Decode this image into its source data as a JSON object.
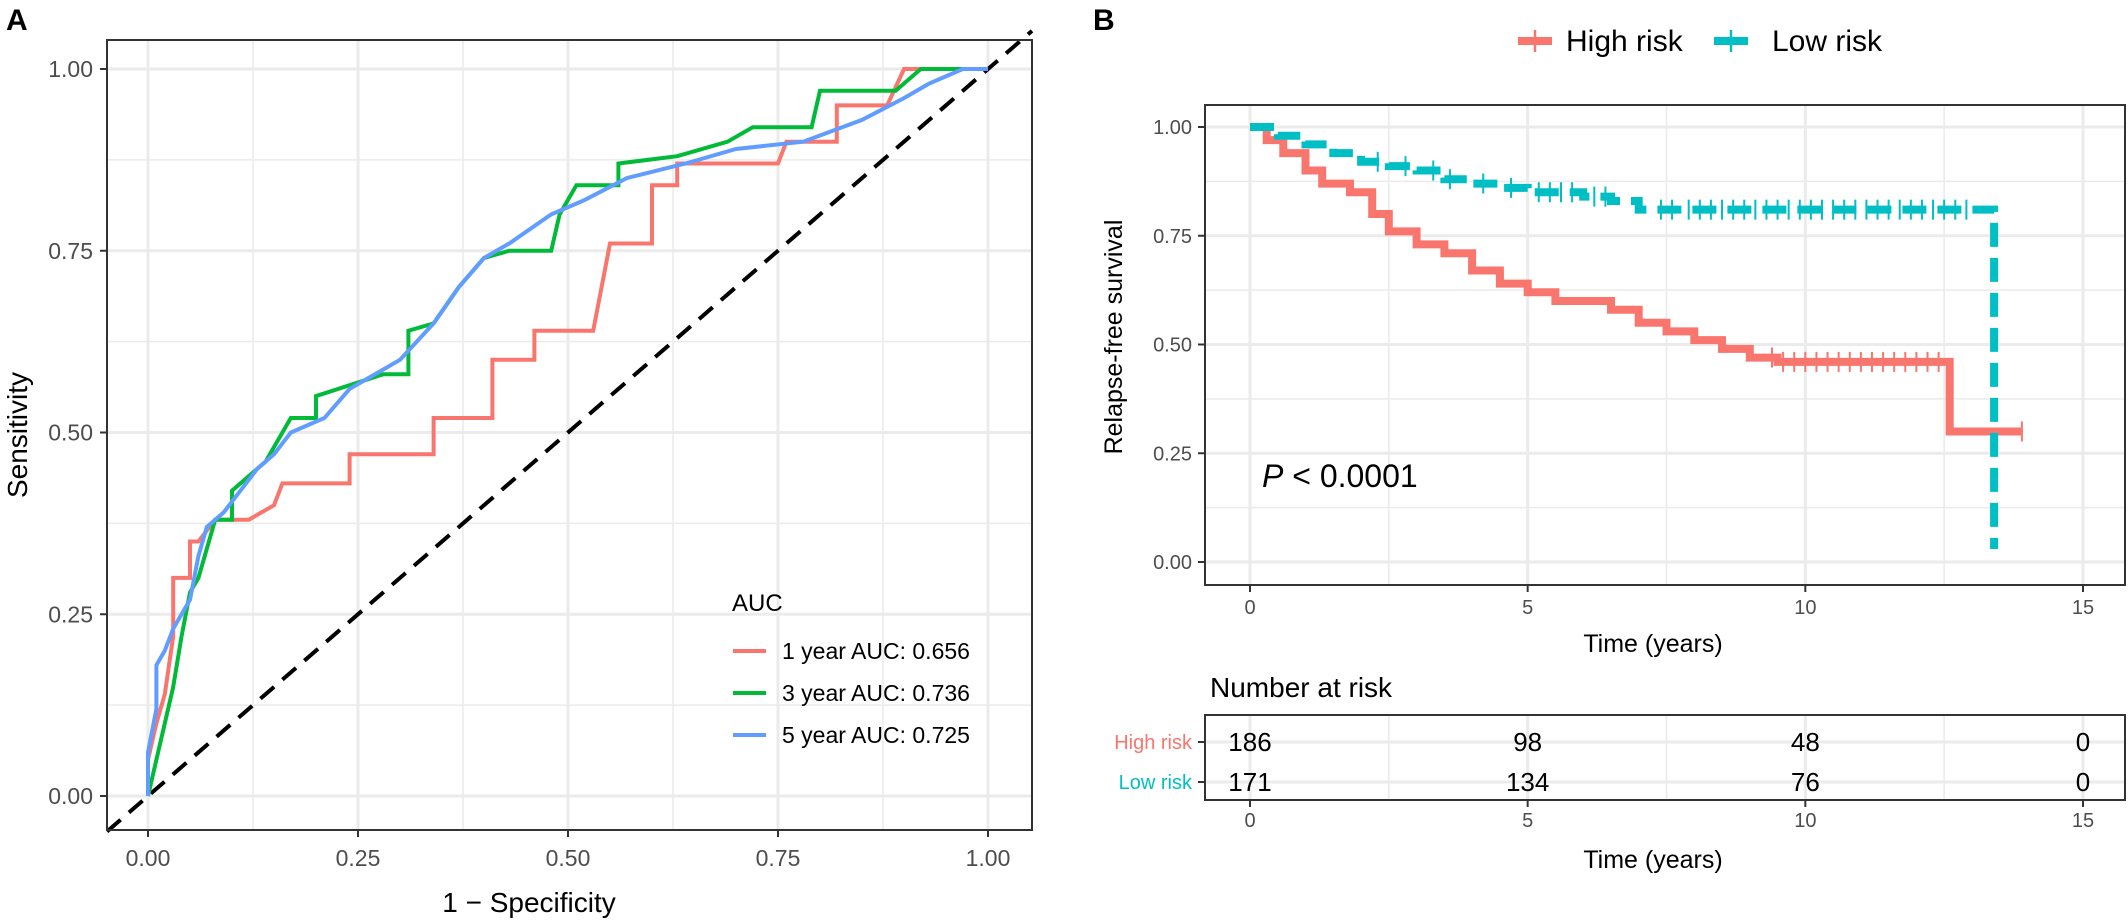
{
  "panels": {
    "a_label": "A",
    "b_label": "B"
  },
  "chart_data": [
    {
      "type": "line",
      "panel": "A",
      "xlabel": "1 − Specificity",
      "ylabel": "Sensitivity",
      "xlim": [
        0,
        1
      ],
      "ylim": [
        0,
        1
      ],
      "xticks": [
        "0.00",
        "0.25",
        "0.50",
        "0.75",
        "1.00"
      ],
      "yticks": [
        "0.00",
        "0.25",
        "0.50",
        "0.75",
        "1.00"
      ],
      "grid": true,
      "legend": {
        "title": "AUC",
        "position": "bottom-right"
      },
      "reference_line": {
        "style": "dashed",
        "color": "#000000",
        "points": [
          [
            0,
            0
          ],
          [
            1,
            1
          ]
        ]
      },
      "series": [
        {
          "name": "1 year AUC: 0.656",
          "color": "#F8766D",
          "points": [
            [
              0,
              0
            ],
            [
              0,
              0.05
            ],
            [
              0.01,
              0.1
            ],
            [
              0.02,
              0.14
            ],
            [
              0.03,
              0.22
            ],
            [
              0.03,
              0.3
            ],
            [
              0.05,
              0.3
            ],
            [
              0.05,
              0.35
            ],
            [
              0.06,
              0.35
            ],
            [
              0.08,
              0.38
            ],
            [
              0.12,
              0.38
            ],
            [
              0.15,
              0.4
            ],
            [
              0.16,
              0.43
            ],
            [
              0.24,
              0.43
            ],
            [
              0.24,
              0.47
            ],
            [
              0.34,
              0.47
            ],
            [
              0.34,
              0.52
            ],
            [
              0.41,
              0.52
            ],
            [
              0.41,
              0.6
            ],
            [
              0.46,
              0.6
            ],
            [
              0.46,
              0.64
            ],
            [
              0.53,
              0.64
            ],
            [
              0.55,
              0.76
            ],
            [
              0.6,
              0.76
            ],
            [
              0.6,
              0.84
            ],
            [
              0.63,
              0.84
            ],
            [
              0.63,
              0.87
            ],
            [
              0.75,
              0.87
            ],
            [
              0.76,
              0.9
            ],
            [
              0.82,
              0.9
            ],
            [
              0.82,
              0.95
            ],
            [
              0.88,
              0.95
            ],
            [
              0.9,
              1
            ],
            [
              1,
              1
            ]
          ]
        },
        {
          "name": "3 year AUC: 0.736",
          "color": "#00BA38",
          "points": [
            [
              0,
              0
            ],
            [
              0.02,
              0.1
            ],
            [
              0.03,
              0.15
            ],
            [
              0.04,
              0.22
            ],
            [
              0.05,
              0.28
            ],
            [
              0.06,
              0.3
            ],
            [
              0.07,
              0.34
            ],
            [
              0.08,
              0.38
            ],
            [
              0.1,
              0.38
            ],
            [
              0.1,
              0.42
            ],
            [
              0.14,
              0.46
            ],
            [
              0.17,
              0.52
            ],
            [
              0.2,
              0.52
            ],
            [
              0.2,
              0.55
            ],
            [
              0.28,
              0.58
            ],
            [
              0.31,
              0.58
            ],
            [
              0.31,
              0.64
            ],
            [
              0.34,
              0.65
            ],
            [
              0.37,
              0.7
            ],
            [
              0.4,
              0.74
            ],
            [
              0.43,
              0.75
            ],
            [
              0.48,
              0.75
            ],
            [
              0.49,
              0.8
            ],
            [
              0.51,
              0.84
            ],
            [
              0.56,
              0.84
            ],
            [
              0.56,
              0.87
            ],
            [
              0.63,
              0.88
            ],
            [
              0.69,
              0.9
            ],
            [
              0.72,
              0.92
            ],
            [
              0.79,
              0.92
            ],
            [
              0.8,
              0.97
            ],
            [
              0.89,
              0.97
            ],
            [
              0.92,
              1
            ],
            [
              1,
              1
            ]
          ]
        },
        {
          "name": "5 year AUC: 0.725",
          "color": "#619CFF",
          "points": [
            [
              0,
              0
            ],
            [
              0,
              0.06
            ],
            [
              0.01,
              0.12
            ],
            [
              0.01,
              0.18
            ],
            [
              0.02,
              0.2
            ],
            [
              0.03,
              0.23
            ],
            [
              0.05,
              0.27
            ],
            [
              0.06,
              0.33
            ],
            [
              0.07,
              0.37
            ],
            [
              0.09,
              0.39
            ],
            [
              0.11,
              0.42
            ],
            [
              0.13,
              0.45
            ],
            [
              0.15,
              0.47
            ],
            [
              0.17,
              0.5
            ],
            [
              0.21,
              0.52
            ],
            [
              0.24,
              0.56
            ],
            [
              0.3,
              0.6
            ],
            [
              0.34,
              0.65
            ],
            [
              0.37,
              0.7
            ],
            [
              0.4,
              0.74
            ],
            [
              0.43,
              0.76
            ],
            [
              0.48,
              0.8
            ],
            [
              0.52,
              0.82
            ],
            [
              0.57,
              0.85
            ],
            [
              0.64,
              0.87
            ],
            [
              0.7,
              0.89
            ],
            [
              0.78,
              0.9
            ],
            [
              0.85,
              0.93
            ],
            [
              0.9,
              0.96
            ],
            [
              0.93,
              0.98
            ],
            [
              0.97,
              1
            ],
            [
              1,
              1
            ]
          ]
        }
      ]
    },
    {
      "type": "line",
      "panel": "B",
      "subtype": "kaplan-meier",
      "xlabel": "Time (years)",
      "ylabel": "Relapse-free survival",
      "xlim": [
        0,
        15
      ],
      "ylim": [
        0,
        1
      ],
      "xticks": [
        "0",
        "5",
        "10",
        "15"
      ],
      "yticks": [
        "0.00",
        "0.25",
        "0.50",
        "0.75",
        "1.00"
      ],
      "grid": true,
      "annotation": {
        "p_symbol": "P",
        "p_text": " < 0.0001"
      },
      "legend": {
        "position": "top"
      },
      "series": [
        {
          "name": "High risk",
          "color": "#F8766D",
          "steps": [
            [
              0,
              1
            ],
            [
              0.3,
              0.97
            ],
            [
              0.6,
              0.94
            ],
            [
              1,
              0.9
            ],
            [
              1.3,
              0.87
            ],
            [
              1.8,
              0.85
            ],
            [
              2.2,
              0.8
            ],
            [
              2.5,
              0.76
            ],
            [
              3,
              0.73
            ],
            [
              3.5,
              0.71
            ],
            [
              4,
              0.67
            ],
            [
              4.5,
              0.64
            ],
            [
              5,
              0.62
            ],
            [
              5.5,
              0.6
            ],
            [
              6.5,
              0.58
            ],
            [
              7,
              0.55
            ],
            [
              7.5,
              0.53
            ],
            [
              8,
              0.51
            ],
            [
              8.5,
              0.49
            ],
            [
              9,
              0.47
            ],
            [
              9.5,
              0.46
            ],
            [
              12.6,
              0.3
            ],
            [
              13.9,
              0.3
            ]
          ],
          "censor_times": [
            9.4,
            9.6,
            9.8,
            10.0,
            10.2,
            10.4,
            10.6,
            10.8,
            11.0,
            11.2,
            11.4,
            11.6,
            11.8,
            12.0,
            12.2,
            12.4,
            13.9
          ]
        },
        {
          "name": "Low risk",
          "color": "#00BFC4",
          "steps": [
            [
              0,
              1
            ],
            [
              0.5,
              0.98
            ],
            [
              1,
              0.96
            ],
            [
              1.5,
              0.94
            ],
            [
              2,
              0.92
            ],
            [
              2.5,
              0.91
            ],
            [
              3,
              0.9
            ],
            [
              3.5,
              0.88
            ],
            [
              4,
              0.87
            ],
            [
              4.5,
              0.86
            ],
            [
              5,
              0.85
            ],
            [
              6,
              0.84
            ],
            [
              6.5,
              0.83
            ],
            [
              7,
              0.81
            ],
            [
              13.4,
              0.81
            ],
            [
              13.4,
              0.03
            ]
          ],
          "censor_times": [
            2.3,
            2.8,
            3.3,
            3.6,
            4.2,
            4.7,
            5.2,
            5.4,
            5.6,
            5.8,
            6.2,
            6.4,
            7.4,
            7.6,
            7.9,
            8.1,
            8.3,
            8.5,
            8.7,
            8.9,
            9.1,
            9.3,
            9.5,
            9.7,
            9.9,
            10.1,
            10.3,
            10.5,
            10.7,
            10.9,
            11.1,
            11.3,
            11.5,
            11.7,
            11.9,
            12.1,
            12.3,
            12.5,
            12.7,
            12.9
          ]
        }
      ]
    },
    {
      "type": "table",
      "panel": "B-risk",
      "title": "Number at risk",
      "xlabel": "Time (years)",
      "xticks": [
        "0",
        "5",
        "10",
        "15"
      ],
      "columns": [
        0,
        5,
        10,
        15
      ],
      "rows": [
        {
          "label": "High risk",
          "color": "#F8766D",
          "values": [
            "186",
            "98",
            "48",
            "0"
          ]
        },
        {
          "label": "Low risk",
          "color": "#00BFC4",
          "values": [
            "171",
            "134",
            "76",
            "0"
          ]
        }
      ]
    }
  ]
}
